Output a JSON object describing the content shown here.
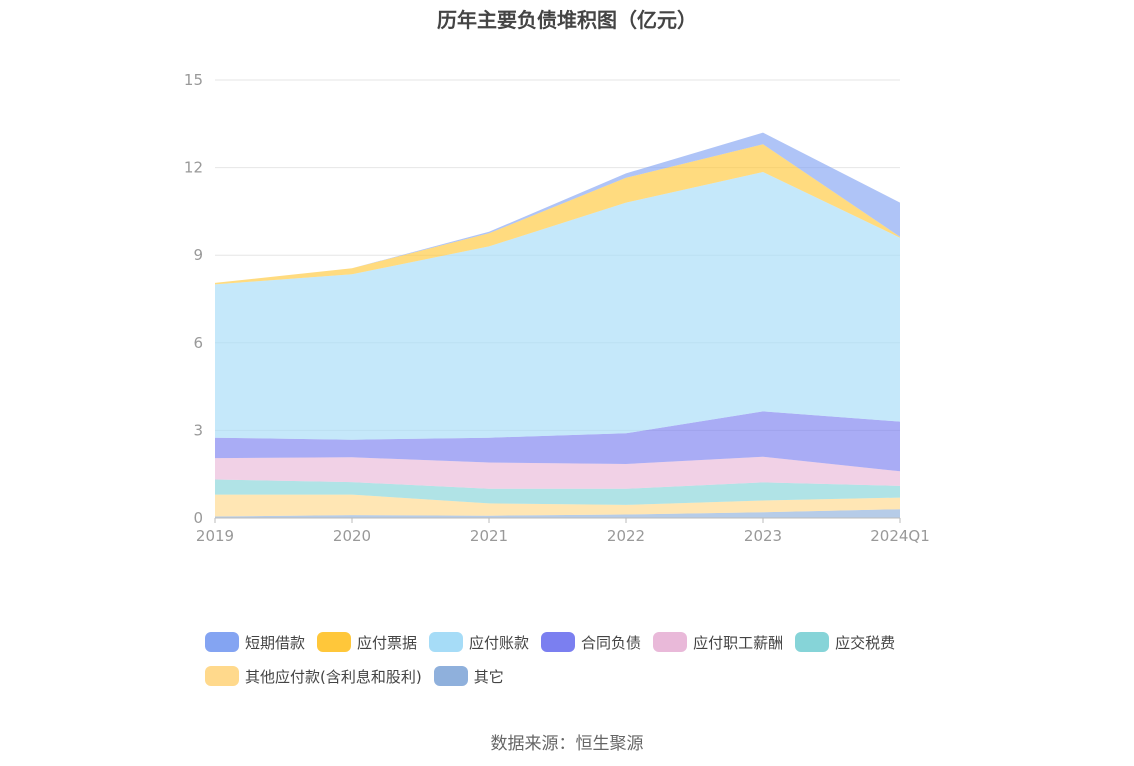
{
  "chart_data": {
    "type": "area",
    "stacked": true,
    "title": "历年主要负债堆积图（亿元）",
    "x": [
      "2019",
      "2020",
      "2021",
      "2022",
      "2023",
      "2024Q1"
    ],
    "yticks": [
      "0",
      "3",
      "6",
      "9",
      "12",
      "15"
    ],
    "ylim": [
      0,
      15
    ],
    "grid": true,
    "legend_position": "bottom",
    "series": [
      {
        "name": "其它",
        "color": "#8fb0dc",
        "values": [
          0.05,
          0.1,
          0.08,
          0.12,
          0.2,
          0.3
        ]
      },
      {
        "name": "其他应付款(含利息和股利)",
        "color": "#ffd98c",
        "values": [
          0.75,
          0.7,
          0.42,
          0.33,
          0.4,
          0.4
        ]
      },
      {
        "name": "应交税费",
        "color": "#86d4d8",
        "values": [
          0.52,
          0.43,
          0.5,
          0.55,
          0.62,
          0.4
        ]
      },
      {
        "name": "应付职工薪酬",
        "color": "#e9b9d9",
        "values": [
          0.73,
          0.85,
          0.9,
          0.85,
          0.88,
          0.5
        ]
      },
      {
        "name": "合同负债",
        "color": "#7b7ff0",
        "values": [
          0.7,
          0.6,
          0.85,
          1.05,
          1.55,
          1.7
        ]
      },
      {
        "name": "应付账款",
        "color": "#a6dcf7",
        "values": [
          5.25,
          5.67,
          6.55,
          7.9,
          8.2,
          6.3
        ]
      },
      {
        "name": "应付票据",
        "color": "#ffc73a",
        "values": [
          0.05,
          0.2,
          0.45,
          0.85,
          0.95,
          0.03
        ]
      },
      {
        "name": "短期借款",
        "color": "#84a4f2",
        "values": [
          0.0,
          0.0,
          0.05,
          0.15,
          0.4,
          1.17
        ]
      }
    ]
  },
  "legend": [
    {
      "label": "短期借款",
      "color": "#84a4f2"
    },
    {
      "label": "应付票据",
      "color": "#ffc73a"
    },
    {
      "label": "应付账款",
      "color": "#a6dcf7"
    },
    {
      "label": "合同负债",
      "color": "#7b7ff0"
    },
    {
      "label": "应付职工薪酬",
      "color": "#e9b9d9"
    },
    {
      "label": "应交税费",
      "color": "#86d4d8"
    },
    {
      "label": "其他应付款(含利息和股利)",
      "color": "#ffd98c"
    },
    {
      "label": "其它",
      "color": "#8fb0dc"
    }
  ],
  "source": "数据来源：恒生聚源"
}
